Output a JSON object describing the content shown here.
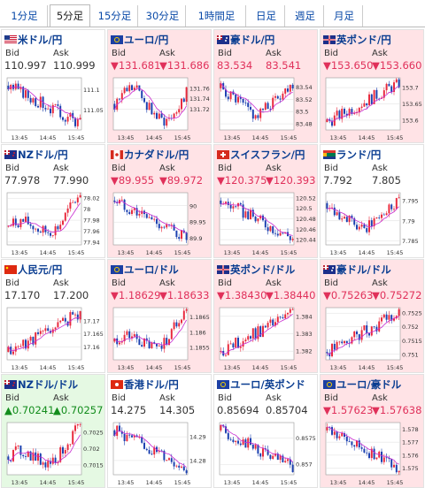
{
  "tabs": [
    {
      "label": "1分足",
      "active": false
    },
    {
      "label": "5分足",
      "active": true
    },
    {
      "label": "15分足",
      "active": false
    },
    {
      "label": "30分足",
      "active": false
    },
    {
      "label": "1時間足",
      "active": false
    },
    {
      "label": "日足",
      "active": false
    },
    {
      "label": "週足",
      "active": false
    },
    {
      "label": "月足",
      "active": false
    }
  ],
  "labels": {
    "bid": "Bid",
    "ask": "Ask"
  },
  "x_ticks": [
    "13:45",
    "14:45",
    "15:45"
  ],
  "colors": {
    "up_candle": "#e8283c",
    "down_candle": "#1a3fb0",
    "ma": "#c82ad0",
    "down_bg": "#ffe3e6",
    "up_bg": "#e5f9e3"
  },
  "pairs": [
    {
      "name": "米ドル/円",
      "flag": "us-flag-icon",
      "state": "neutral",
      "bid": "110.997",
      "ask": "110.999",
      "yticks": [
        "111.1",
        "111.05"
      ],
      "low": 111.0,
      "high": 111.13,
      "trend": "fall",
      "ma": "low"
    },
    {
      "name": "ユーロ/円",
      "flag": "eu-flag-icon",
      "state": "down",
      "bid": "▼131.681",
      "ask": "▼131.686",
      "yticks": [
        "131.76",
        "131.74",
        "131.72"
      ],
      "low": 131.68,
      "high": 131.78,
      "trend": "wave",
      "ma": "low"
    },
    {
      "name": "豪ドル/円",
      "flag": "au-flag-icon",
      "state": "down",
      "bid": "83.534",
      "ask": "83.541",
      "yticks": [
        "83.54",
        "83.52",
        "83.5",
        "83.48"
      ],
      "low": 83.47,
      "high": 83.555,
      "trend": "vee",
      "ma": "mid"
    },
    {
      "name": "英ポンド/円",
      "flag": "gb-flag-icon",
      "state": "down",
      "bid": "▼153.650",
      "ask": "▼153.660",
      "yticks": [
        "153.7",
        "153.65",
        "153.6"
      ],
      "low": 153.57,
      "high": 153.73,
      "trend": "rise",
      "ma": "low"
    },
    {
      "name": "NZドル/円",
      "flag": "nz-flag-icon",
      "state": "neutral",
      "bid": "77.978",
      "ask": "77.990",
      "yticks": [
        "78.02",
        "78",
        "77.98",
        "77.96",
        "77.94"
      ],
      "low": 77.935,
      "high": 78.03,
      "trend": "riseend",
      "ma": "mid"
    },
    {
      "name": "カナダドル/円",
      "flag": "ca-flag-icon",
      "state": "down",
      "bid": "▼89.955",
      "ask": "▼89.972",
      "yticks": [
        "90",
        "89.95",
        "89.9"
      ],
      "low": 89.88,
      "high": 90.04,
      "trend": "fall",
      "ma": "high"
    },
    {
      "name": "スイスフラン/円",
      "flag": "ch-flag-icon",
      "state": "down",
      "bid": "▼120.375",
      "ask": "▼120.393",
      "yticks": [
        "120.52",
        "120.5",
        "120.48",
        "120.46",
        "120.44"
      ],
      "low": 120.43,
      "high": 120.53,
      "trend": "fall",
      "ma": "mid"
    },
    {
      "name": "ランド/円",
      "flag": "za-flag-icon",
      "state": "neutral",
      "bid": "7.792",
      "ask": "7.805",
      "yticks": [
        "7.795",
        "7.79",
        "7.785"
      ],
      "low": 7.784,
      "high": 7.797,
      "trend": "vee",
      "ma": "high"
    },
    {
      "name": "人民元/円",
      "flag": "cn-flag-icon",
      "state": "neutral",
      "bid": "17.170",
      "ask": "17.200",
      "yticks": [
        "17.17",
        "17.165",
        "17.16"
      ],
      "low": 17.155,
      "high": 17.175,
      "trend": "rise",
      "ma": "low"
    },
    {
      "name": "ユーロ/ドル",
      "flag": "eu-flag-icon",
      "state": "down",
      "bid": "▼1.18629",
      "ask": "▼1.18633",
      "yticks": [
        "1.1865",
        "1.186",
        "1.1855"
      ],
      "low": 1.1851,
      "high": 1.1868,
      "trend": "riseend",
      "ma": "mid"
    },
    {
      "name": "英ポンド/ドル",
      "flag": "gb-flag-icon",
      "state": "down",
      "bid": "▼1.38430",
      "ask": "▼1.38440",
      "yticks": [
        "1.384",
        "1.383",
        "1.382"
      ],
      "low": 1.3815,
      "high": 1.3845,
      "trend": "rise",
      "ma": "low"
    },
    {
      "name": "豪ドル/ドル",
      "flag": "au-flag-icon",
      "state": "down",
      "bid": "▼0.75263",
      "ask": "▼0.75272",
      "yticks": [
        "0.7525",
        "0.752",
        "0.7515",
        "0.751"
      ],
      "low": 0.7508,
      "high": 0.7527,
      "trend": "rise",
      "ma": "mid"
    },
    {
      "name": "NZドル/ドル",
      "flag": "nz-flag-icon",
      "state": "up",
      "bid": "▲0.70241",
      "ask": "▲0.70257",
      "yticks": [
        "0.7025",
        "0.702",
        "0.7015"
      ],
      "low": 0.7012,
      "high": 0.7028,
      "trend": "riseend",
      "ma": "low"
    },
    {
      "name": "香港ドル/円",
      "flag": "hk-flag-icon",
      "state": "neutral",
      "bid": "14.275",
      "ask": "14.305",
      "yticks": [
        "14.29",
        "14.28"
      ],
      "low": 14.274,
      "high": 14.296,
      "trend": "fall",
      "ma": "high"
    },
    {
      "name": "ユーロ/英ポンド",
      "flag": "eu-flag-icon",
      "state": "neutral",
      "bid": "0.85694",
      "ask": "0.85704",
      "yticks": [
        "0.8575",
        "0.857"
      ],
      "low": 0.8568,
      "high": 0.8578,
      "trend": "fall",
      "ma": "mid"
    },
    {
      "name": "ユーロ/豪ドル",
      "flag": "eu-flag-icon",
      "state": "down",
      "bid": "▼1.57623",
      "ask": "▼1.57638",
      "yticks": [
        "1.578",
        "1.577",
        "1.576",
        "1.575"
      ],
      "low": 1.5745,
      "high": 1.5785,
      "trend": "fall",
      "ma": "high"
    }
  ]
}
